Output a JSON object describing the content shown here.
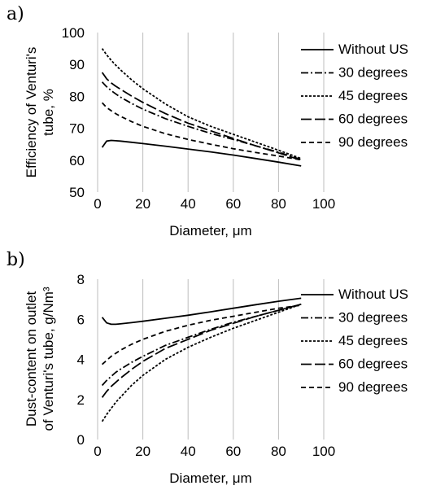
{
  "chart_data": [
    {
      "panel_label": "a)",
      "type": "line",
      "xlabel": "Diameter, μm",
      "ylabel": [
        "Efficiency of Venturi's",
        "tube, %"
      ],
      "xlim": [
        0,
        100
      ],
      "ylim": [
        50,
        100
      ],
      "xticks": [
        "0",
        "20",
        "40",
        "60",
        "80",
        "100"
      ],
      "yticks": [
        "50",
        "60",
        "70",
        "80",
        "90",
        "100"
      ],
      "grid": "vertical",
      "legend_position": "right",
      "x": [
        2,
        4,
        6,
        8,
        10,
        15,
        20,
        30,
        40,
        50,
        60,
        70,
        80,
        90
      ],
      "series": [
        {
          "name": "Without US",
          "dash": "solid",
          "values": [
            64,
            66,
            66.2,
            66.1,
            66.0,
            65.6,
            65.2,
            64.4,
            63.5,
            62.6,
            61.6,
            60.5,
            59.4,
            58.2
          ]
        },
        {
          "name": "30 degrees",
          "dash": "dashdot",
          "values": [
            84.5,
            83,
            81.8,
            80.8,
            79.8,
            77.8,
            76,
            73,
            70.6,
            68.4,
            66.5,
            64.5,
            62.5,
            60.2
          ]
        },
        {
          "name": "45 degrees",
          "dash": "shortdash",
          "values": [
            95,
            93,
            91.3,
            89.8,
            88.4,
            85.2,
            82.4,
            77.6,
            73.6,
            70.6,
            68.1,
            65.6,
            63.1,
            60.5
          ]
        },
        {
          "name": "60 degrees",
          "dash": "longdash",
          "values": [
            87.5,
            85.5,
            84.2,
            83.2,
            82.3,
            80.1,
            78.1,
            74.6,
            71.6,
            69.2,
            66.8,
            64.5,
            62.3,
            60.0
          ]
        },
        {
          "name": "90 degrees",
          "dash": "mediumdash",
          "values": [
            78,
            76.5,
            75.5,
            74.6,
            73.8,
            72.1,
            70.6,
            68.3,
            66.5,
            65,
            63.6,
            62.4,
            61.3,
            60.1
          ]
        }
      ]
    },
    {
      "panel_label": "b)",
      "type": "line",
      "xlabel": "Diameter, μm",
      "ylabel": [
        "Dust-content on outlet",
        "of Venturi's tube, g/Nm³"
      ],
      "xlim": [
        0,
        100
      ],
      "ylim": [
        0,
        8
      ],
      "xticks": [
        "0",
        "20",
        "40",
        "60",
        "80",
        "100"
      ],
      "yticks": [
        "0",
        "2",
        "4",
        "6",
        "8"
      ],
      "grid": "vertical",
      "legend_position": "right",
      "x": [
        2,
        4,
        6,
        8,
        10,
        15,
        20,
        30,
        40,
        50,
        60,
        70,
        80,
        90
      ],
      "series": [
        {
          "name": "Without US",
          "dash": "solid",
          "values": [
            6.1,
            5.82,
            5.75,
            5.75,
            5.77,
            5.83,
            5.9,
            6.05,
            6.2,
            6.37,
            6.55,
            6.73,
            6.9,
            7.05
          ]
        },
        {
          "name": "30 degrees",
          "dash": "dashdot",
          "values": [
            2.7,
            2.95,
            3.15,
            3.35,
            3.5,
            3.85,
            4.15,
            4.7,
            5.1,
            5.5,
            5.85,
            6.15,
            6.45,
            6.75
          ]
        },
        {
          "name": "45 degrees",
          "dash": "shortdash",
          "values": [
            0.9,
            1.25,
            1.55,
            1.85,
            2.1,
            2.7,
            3.2,
            4.0,
            4.6,
            5.1,
            5.55,
            5.95,
            6.35,
            6.75
          ]
        },
        {
          "name": "60 degrees",
          "dash": "longdash",
          "values": [
            2.1,
            2.4,
            2.65,
            2.85,
            3.05,
            3.5,
            3.9,
            4.55,
            5.0,
            5.45,
            5.8,
            6.15,
            6.45,
            6.75
          ]
        },
        {
          "name": "90 degrees",
          "dash": "mediumdash",
          "values": [
            3.75,
            3.95,
            4.15,
            4.3,
            4.45,
            4.75,
            5.0,
            5.4,
            5.7,
            5.95,
            6.15,
            6.35,
            6.55,
            6.7
          ]
        }
      ]
    }
  ]
}
